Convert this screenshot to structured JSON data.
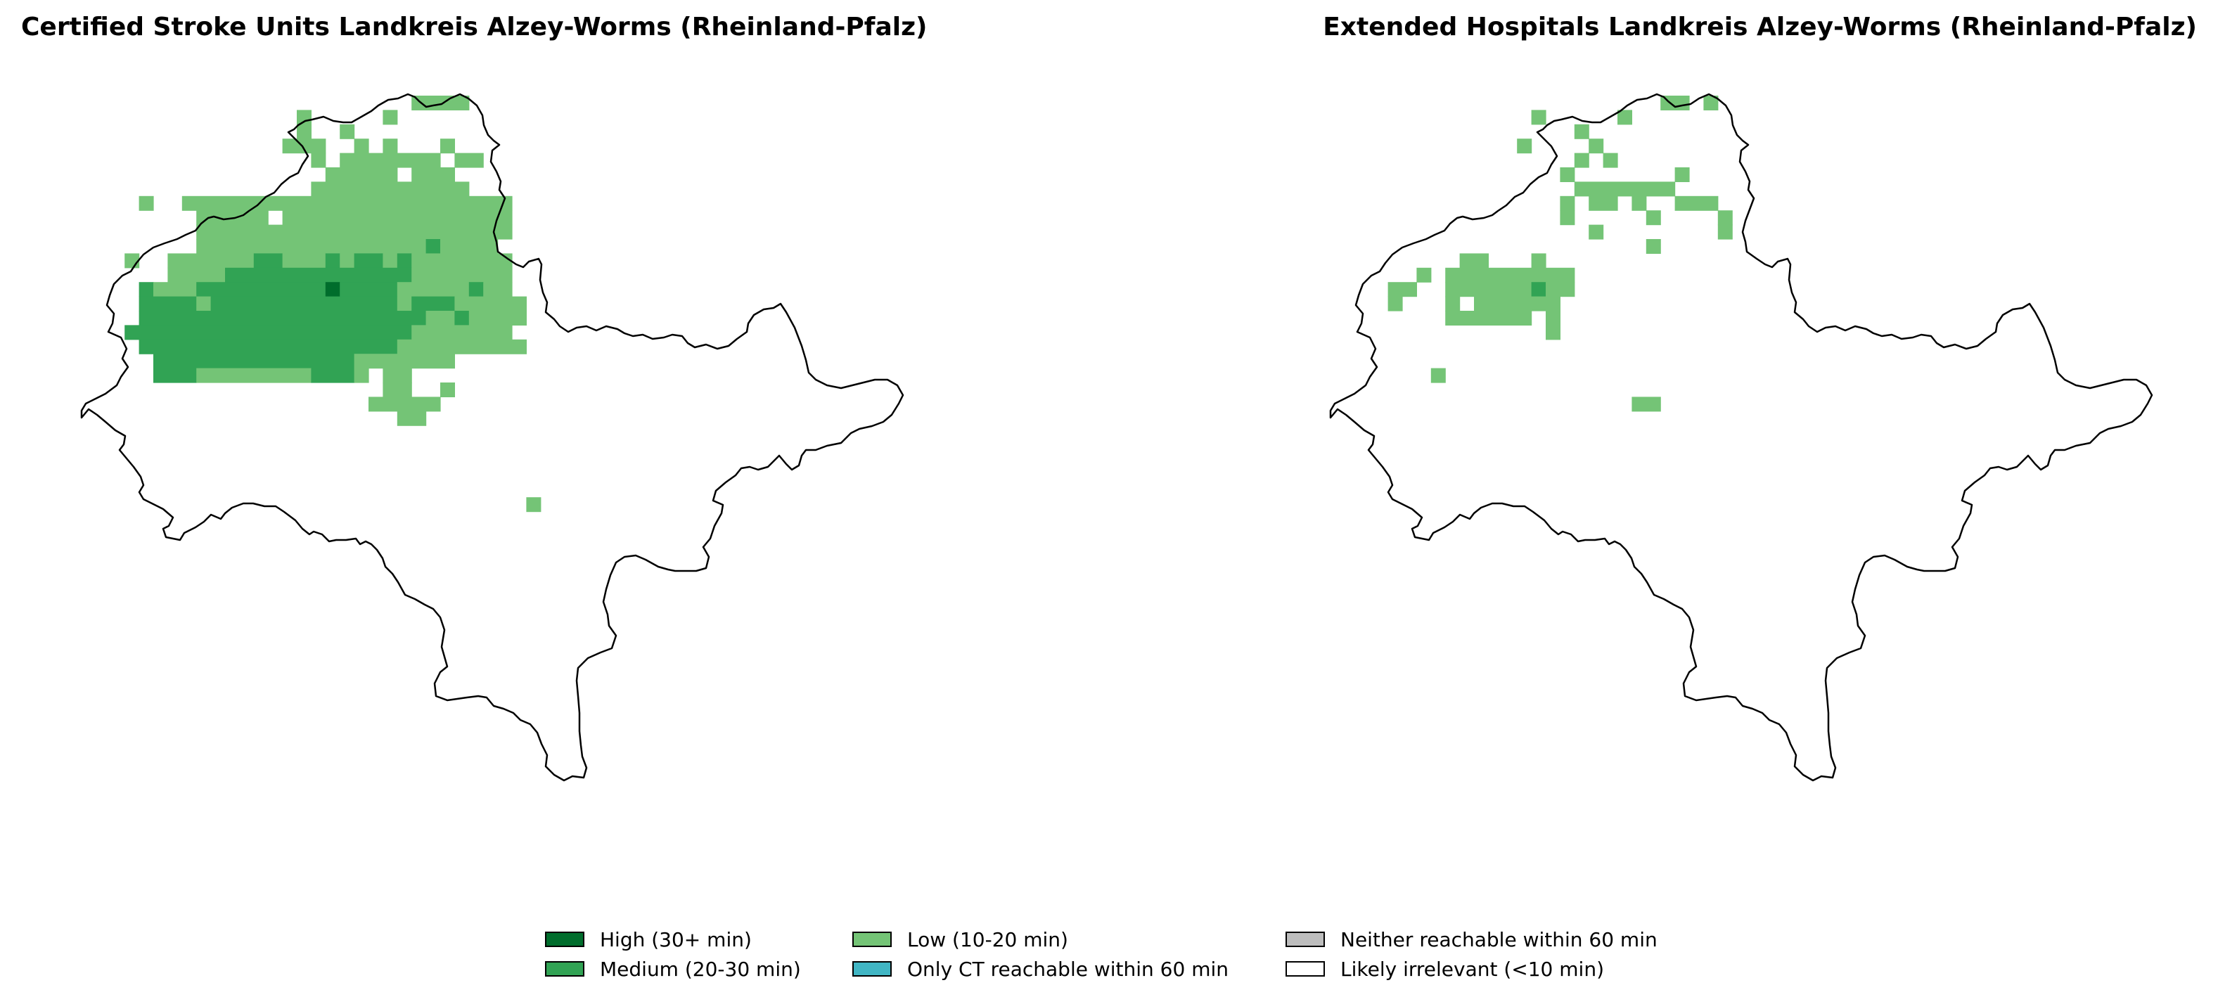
{
  "panels": [
    {
      "title": "Certified Stroke Units Landkreis Alzey-Worms (Rheinland-Pfalz)",
      "cell_rows": [
        {
          "row": 1,
          "runs": [
            [
              24,
              26,
              "low"
            ],
            [
              27,
              27,
              "low"
            ]
          ]
        },
        {
          "row": 2,
          "runs": [
            [
              16,
              16,
              "low"
            ],
            [
              22,
              22,
              "low"
            ]
          ]
        },
        {
          "row": 3,
          "runs": [
            [
              16,
              16,
              "low"
            ],
            [
              19,
              19,
              "low"
            ]
          ]
        },
        {
          "row": 4,
          "runs": [
            [
              15,
              17,
              "low"
            ],
            [
              20,
              20,
              "low"
            ],
            [
              22,
              22,
              "low"
            ],
            [
              26,
              26,
              "low"
            ]
          ]
        },
        {
          "row": 5,
          "runs": [
            [
              17,
              17,
              "low"
            ],
            [
              19,
              25,
              "low"
            ],
            [
              27,
              28,
              "low"
            ]
          ]
        },
        {
          "row": 6,
          "runs": [
            [
              18,
              22,
              "low"
            ],
            [
              24,
              26,
              "low"
            ]
          ]
        },
        {
          "row": 7,
          "runs": [
            [
              17,
              27,
              "low"
            ]
          ]
        },
        {
          "row": 8,
          "runs": [
            [
              5,
              5,
              "low"
            ],
            [
              8,
              30,
              "low"
            ]
          ]
        },
        {
          "row": 9,
          "runs": [
            [
              9,
              13,
              "low"
            ],
            [
              15,
              30,
              "low"
            ]
          ]
        },
        {
          "row": 10,
          "runs": [
            [
              9,
              30,
              "low"
            ]
          ]
        },
        {
          "row": 11,
          "runs": [
            [
              9,
              24,
              "low"
            ],
            [
              25,
              25,
              "medium"
            ],
            [
              26,
              29,
              "low"
            ]
          ]
        },
        {
          "row": 12,
          "runs": [
            [
              4,
              4,
              "low"
            ],
            [
              7,
              12,
              "low"
            ],
            [
              13,
              14,
              "medium"
            ],
            [
              15,
              17,
              "low"
            ],
            [
              18,
              18,
              "medium"
            ],
            [
              19,
              19,
              "low"
            ],
            [
              20,
              21,
              "medium"
            ],
            [
              22,
              22,
              "low"
            ],
            [
              23,
              23,
              "medium"
            ],
            [
              24,
              30,
              "low"
            ]
          ]
        },
        {
          "row": 13,
          "runs": [
            [
              7,
              10,
              "low"
            ],
            [
              11,
              23,
              "medium"
            ],
            [
              24,
              30,
              "low"
            ]
          ]
        },
        {
          "row": 14,
          "runs": [
            [
              5,
              5,
              "medium"
            ],
            [
              6,
              8,
              "low"
            ],
            [
              9,
              17,
              "medium"
            ],
            [
              18,
              18,
              "high"
            ],
            [
              19,
              22,
              "medium"
            ],
            [
              23,
              27,
              "low"
            ],
            [
              28,
              28,
              "medium"
            ],
            [
              29,
              30,
              "low"
            ]
          ]
        },
        {
          "row": 15,
          "runs": [
            [
              5,
              8,
              "medium"
            ],
            [
              9,
              9,
              "low"
            ],
            [
              10,
              22,
              "medium"
            ],
            [
              23,
              23,
              "low"
            ],
            [
              24,
              26,
              "medium"
            ],
            [
              27,
              31,
              "low"
            ]
          ]
        },
        {
          "row": 16,
          "runs": [
            [
              5,
              24,
              "medium"
            ],
            [
              25,
              26,
              "low"
            ],
            [
              27,
              27,
              "medium"
            ],
            [
              28,
              31,
              "low"
            ]
          ]
        },
        {
          "row": 17,
          "runs": [
            [
              4,
              23,
              "medium"
            ],
            [
              24,
              30,
              "low"
            ]
          ]
        },
        {
          "row": 18,
          "runs": [
            [
              5,
              22,
              "medium"
            ],
            [
              23,
              31,
              "low"
            ]
          ]
        },
        {
          "row": 19,
          "runs": [
            [
              6,
              19,
              "medium"
            ],
            [
              20,
              26,
              "low"
            ]
          ]
        },
        {
          "row": 20,
          "runs": [
            [
              6,
              8,
              "medium"
            ],
            [
              9,
              16,
              "low"
            ],
            [
              17,
              19,
              "medium"
            ],
            [
              20,
              20,
              "low"
            ],
            [
              22,
              23,
              "low"
            ]
          ]
        },
        {
          "row": 21,
          "runs": [
            [
              22,
              23,
              "low"
            ],
            [
              26,
              26,
              "low"
            ]
          ]
        },
        {
          "row": 22,
          "runs": [
            [
              21,
              25,
              "low"
            ]
          ]
        },
        {
          "row": 23,
          "runs": [
            [
              23,
              24,
              "low"
            ]
          ]
        },
        {
          "row": 29,
          "runs": [
            [
              32,
              32,
              "low"
            ]
          ]
        }
      ]
    },
    {
      "title": "Extended Hospitals Landkreis Alzey-Worms (Rheinland-Pfalz)",
      "cell_rows": [
        {
          "row": 1,
          "runs": [
            [
              24,
              25,
              "low"
            ],
            [
              27,
              27,
              "low"
            ]
          ]
        },
        {
          "row": 2,
          "runs": [
            [
              15,
              15,
              "low"
            ],
            [
              21,
              21,
              "low"
            ]
          ]
        },
        {
          "row": 3,
          "runs": [
            [
              18,
              18,
              "low"
            ]
          ]
        },
        {
          "row": 4,
          "runs": [
            [
              14,
              14,
              "low"
            ],
            [
              19,
              19,
              "low"
            ]
          ]
        },
        {
          "row": 5,
          "runs": [
            [
              18,
              18,
              "low"
            ],
            [
              20,
              20,
              "low"
            ]
          ]
        },
        {
          "row": 6,
          "runs": [
            [
              17,
              17,
              "low"
            ],
            [
              25,
              25,
              "low"
            ]
          ]
        },
        {
          "row": 7,
          "runs": [
            [
              18,
              24,
              "low"
            ]
          ]
        },
        {
          "row": 8,
          "runs": [
            [
              17,
              17,
              "low"
            ],
            [
              19,
              20,
              "low"
            ],
            [
              22,
              22,
              "low"
            ],
            [
              25,
              27,
              "low"
            ]
          ]
        },
        {
          "row": 9,
          "runs": [
            [
              17,
              17,
              "low"
            ],
            [
              23,
              23,
              "low"
            ],
            [
              28,
              28,
              "low"
            ]
          ]
        },
        {
          "row": 10,
          "runs": [
            [
              19,
              19,
              "low"
            ],
            [
              28,
              28,
              "low"
            ]
          ]
        },
        {
          "row": 11,
          "runs": [
            [
              23,
              23,
              "low"
            ]
          ]
        },
        {
          "row": 12,
          "runs": [
            [
              10,
              11,
              "low"
            ],
            [
              15,
              15,
              "low"
            ]
          ]
        },
        {
          "row": 13,
          "runs": [
            [
              7,
              7,
              "low"
            ],
            [
              9,
              17,
              "low"
            ]
          ]
        },
        {
          "row": 14,
          "runs": [
            [
              5,
              6,
              "low"
            ],
            [
              9,
              14,
              "low"
            ],
            [
              15,
              15,
              "medium"
            ],
            [
              16,
              17,
              "low"
            ]
          ]
        },
        {
          "row": 15,
          "runs": [
            [
              5,
              5,
              "low"
            ],
            [
              9,
              9,
              "low"
            ],
            [
              11,
              13,
              "low"
            ],
            [
              14,
              16,
              "low"
            ]
          ]
        },
        {
          "row": 16,
          "runs": [
            [
              9,
              14,
              "low"
            ],
            [
              16,
              16,
              "low"
            ]
          ]
        },
        {
          "row": 17,
          "runs": [
            [
              16,
              16,
              "low"
            ]
          ]
        },
        {
          "row": 20,
          "runs": [
            [
              8,
              8,
              "low"
            ]
          ]
        },
        {
          "row": 22,
          "runs": [
            [
              22,
              23,
              "low"
            ]
          ]
        }
      ]
    }
  ],
  "legend": [
    {
      "label": "High (30+ min)",
      "color": "#006d2c",
      "key": "high"
    },
    {
      "label": "Medium (20-30 min)",
      "color": "#31a354",
      "key": "medium"
    },
    {
      "label": "Low (10-20 min)",
      "color": "#74c476",
      "key": "low"
    },
    {
      "label": "Only CT reachable within 60 min",
      "color": "#41b6c4",
      "key": "ct"
    },
    {
      "label": "Neither reachable within 60 min",
      "color": "#bdbdbd",
      "key": "neither"
    },
    {
      "label": "Likely irrelevant (<10 min)",
      "color": "#ffffff",
      "key": "irrelevant"
    }
  ]
}
